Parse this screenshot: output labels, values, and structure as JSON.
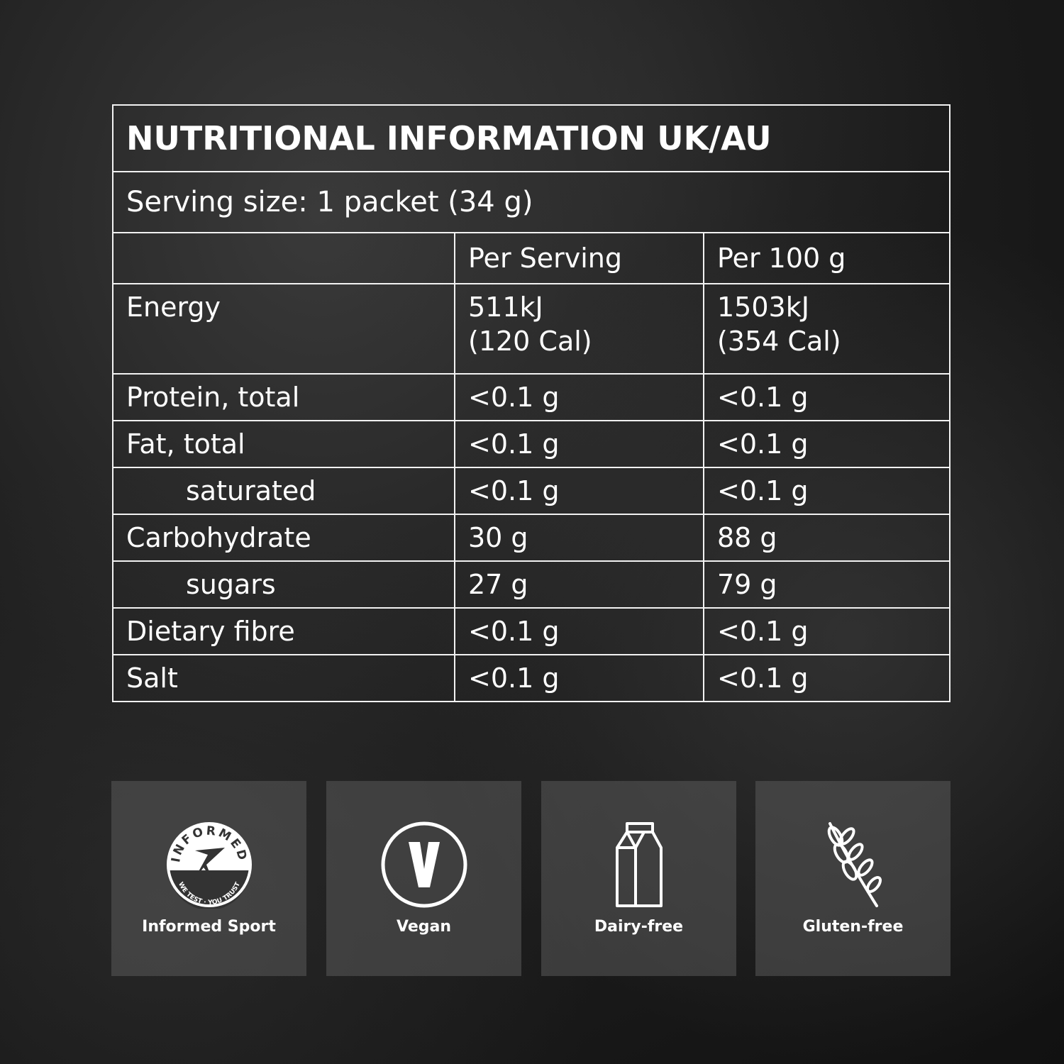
{
  "table": {
    "title": "NUTRITIONAL INFORMATION UK/AU",
    "serving_size": "Serving size: 1 packet (34 g)",
    "columns": [
      "",
      "Per Serving",
      "Per 100 g"
    ],
    "rows": [
      {
        "label": "Energy",
        "per_serving": [
          "511kJ",
          "(120 Cal)"
        ],
        "per_100g": [
          "1503kJ",
          "(354 Cal)"
        ]
      },
      {
        "label": "Protein, total",
        "per_serving": "<0.1 g",
        "per_100g": "<0.1 g"
      },
      {
        "label": "Fat, total",
        "per_serving": "<0.1 g",
        "per_100g": "<0.1 g"
      },
      {
        "label": "saturated",
        "per_serving": "<0.1 g",
        "per_100g": "<0.1 g"
      },
      {
        "label": "Carbohydrate",
        "per_serving": "30 g",
        "per_100g": "88 g"
      },
      {
        "label": "sugars",
        "per_serving": "27 g",
        "per_100g": "79 g"
      },
      {
        "label": "Dietary fibre",
        "per_serving": "<0.1 g",
        "per_100g": "<0.1 g"
      },
      {
        "label": "Salt",
        "per_serving": "<0.1 g",
        "per_100g": "<0.1 g"
      }
    ]
  },
  "badges": [
    {
      "label": "Informed Sport",
      "icon": "informed-sport-logo",
      "logo_text": [
        "INFORMED",
        "WE TEST · YOU TRUST"
      ]
    },
    {
      "label": "Vegan",
      "icon": "vegan-v-icon"
    },
    {
      "label": "Dairy-free",
      "icon": "milk-carton-icon"
    },
    {
      "label": "Gluten-free",
      "icon": "wheat-icon"
    }
  ]
}
